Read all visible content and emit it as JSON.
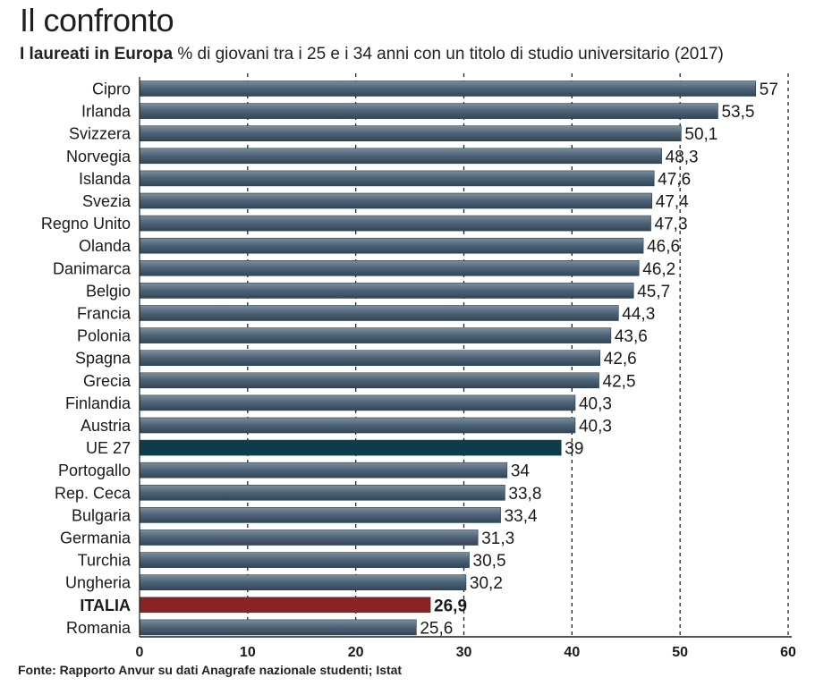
{
  "header": {
    "title": "Il confronto",
    "subtitle_bold": "I laureati in Europa",
    "subtitle_rest": " % di giovani tra i 25 e i 34 anni con un titolo di studio universitario (2017)"
  },
  "footer": {
    "source": "Fonte: Rapporto Anvur su dati Anagrafe nazionale studenti; Istat"
  },
  "colors": {
    "bar_default": "#4d6375",
    "bar_highlight_eu": "#0d3d4a",
    "bar_highlight_italy": "#8a2423",
    "grid": "#222222"
  },
  "chart_data": {
    "type": "bar",
    "orientation": "horizontal",
    "categories": [
      "Cipro",
      "Irlanda",
      "Svizzera",
      "Norvegia",
      "Islanda",
      "Svezia",
      "Regno Unito",
      "Olanda",
      "Danimarca",
      "Belgio",
      "Francia",
      "Polonia",
      "Spagna",
      "Grecia",
      "Finlandia",
      "Austria",
      "UE 27",
      "Portogallo",
      "Rep. Ceca",
      "Bulgaria",
      "Germania",
      "Turchia",
      "Ungheria",
      "ITALIA",
      "Romania"
    ],
    "values": [
      57,
      53.5,
      50.1,
      48.3,
      47.6,
      47.4,
      47.3,
      46.6,
      46.2,
      45.7,
      44.3,
      43.6,
      42.6,
      42.5,
      40.3,
      40.3,
      39,
      34,
      33.8,
      33.4,
      31.3,
      30.5,
      30.2,
      26.9,
      25.6
    ],
    "value_labels": [
      "57",
      "53,5",
      "50,1",
      "48,3",
      "47,6",
      "47,4",
      "47,3",
      "46,6",
      "46,2",
      "45,7",
      "44,3",
      "43,6",
      "42,6",
      "42,5",
      "40,3",
      "40,3",
      "39",
      "34",
      "33,8",
      "33,4",
      "31,3",
      "30,5",
      "30,2",
      "26,9",
      "25,6"
    ],
    "highlight": {
      "UE 27": "eu",
      "ITALIA": "italy"
    },
    "bold_categories": [
      "ITALIA"
    ],
    "xlim": [
      0,
      60
    ],
    "xticks": [
      "0",
      "10",
      "20",
      "30",
      "40",
      "50",
      "60"
    ],
    "grid": "dashed-vertical"
  }
}
